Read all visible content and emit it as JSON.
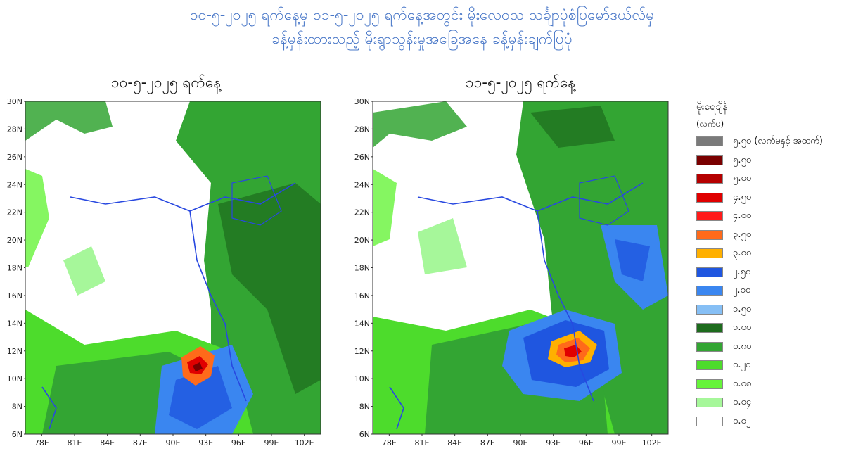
{
  "title_line1": "၁၀-၅-၂၀၂၅ ရက်နေ့မှ ၁၁-၅-၂၀၂၅ ရက်နေ့အတွင်း မိုးလေဝသ သင်္ချာပုံစံပြမော်ဒယ်လ်မှ",
  "title_line2": "ခန့်မှန်းထားသည့် မိုးရွာသွန်းမှုအခြေအနေ ခန့်မှန်းချက်ပြပုံ",
  "maps": [
    {
      "date_label": "၁၀-၅-၂၀၂၅ ရက်နေ့"
    },
    {
      "date_label": "၁၁-၅-၂၀၂၅ ရက်နေ့"
    }
  ],
  "axes": {
    "lat_labels": [
      "30N",
      "28N",
      "26N",
      "24N",
      "22N",
      "20N",
      "18N",
      "16N",
      "14N",
      "12N",
      "10N",
      "8N",
      "6N"
    ],
    "lon_labels": [
      "78E",
      "81E",
      "84E",
      "87E",
      "90E",
      "93E",
      "96E",
      "99E",
      "102E"
    ],
    "lat_range": [
      6,
      30
    ],
    "lon_range": [
      76.5,
      103.5
    ]
  },
  "legend": {
    "title": "မိုးရေချိန်",
    "unit": "(လက်မ)",
    "items": [
      {
        "label": "၅.၅၀ (လက်မနှင့် အထက်)",
        "color": "#7a7a7a"
      },
      {
        "label": "၅.၅၀",
        "color": "#7a0000"
      },
      {
        "label": "၅.၀၀",
        "color": "#b50000"
      },
      {
        "label": "၄.၅၀",
        "color": "#e00000"
      },
      {
        "label": "၄.၀၀",
        "color": "#ff1a1a"
      },
      {
        "label": "၃.၅၀",
        "color": "#ff6a1a"
      },
      {
        "label": "၃.၀၀",
        "color": "#ffb000"
      },
      {
        "label": "၂.၅၀",
        "color": "#1f56e0"
      },
      {
        "label": "၂.၀၀",
        "color": "#3a86f0"
      },
      {
        "label": "၁.၅၀",
        "color": "#86bff5"
      },
      {
        "label": "၁.၀၀",
        "color": "#1d6b1d"
      },
      {
        "label": "၀.၈၀",
        "color": "#33a533"
      },
      {
        "label": "၀.၂၀",
        "color": "#4ddc2c"
      },
      {
        "label": "၀.၀၈",
        "color": "#66f43a"
      },
      {
        "label": "၀.၀၄",
        "color": "#a6f79a"
      },
      {
        "label": "၀.၀၂",
        "color": "#ffffff"
      }
    ]
  }
}
